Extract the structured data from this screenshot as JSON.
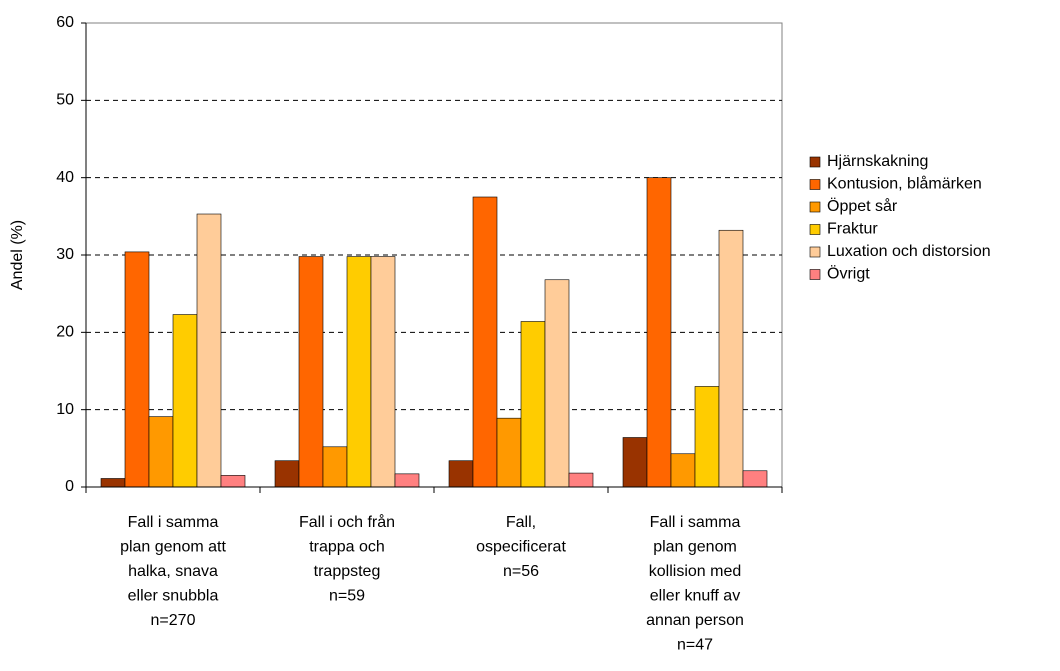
{
  "chart_data": {
    "type": "bar",
    "y_label": "Andel (%)",
    "categories": [
      [
        "Fall i samma",
        "plan genom att",
        "halka, snava",
        "eller snubbla",
        "n=270"
      ],
      [
        "Fall i och från",
        "trappa och",
        "trappsteg",
        "n=59"
      ],
      [
        "Fall,",
        "ospecificerat",
        "n=56"
      ],
      [
        "Fall i samma",
        "plan genom",
        "kollision med",
        "eller knuff av",
        "annan person",
        "n=47"
      ]
    ],
    "series": [
      {
        "name": "Hjärnskakning",
        "color": "#993300",
        "values": [
          1.1,
          3.4,
          3.4,
          6.4
        ]
      },
      {
        "name": "Kontusion, blåmärken",
        "color": "#ff6600",
        "values": [
          30.4,
          29.8,
          37.5,
          40.0
        ]
      },
      {
        "name": "Öppet sår",
        "color": "#ff9900",
        "values": [
          9.1,
          5.2,
          8.9,
          4.3
        ]
      },
      {
        "name": "Fraktur",
        "color": "#ffcc00",
        "values": [
          22.3,
          29.8,
          21.4,
          13.0
        ]
      },
      {
        "name": "Luxation och distorsion",
        "color": "#ffcc99",
        "values": [
          35.3,
          29.8,
          26.8,
          33.2
        ]
      },
      {
        "name": "Övrigt",
        "color": "#ff8080",
        "values": [
          1.5,
          1.7,
          1.8,
          2.1
        ]
      }
    ],
    "ylim": [
      0,
      60
    ],
    "yticks": [
      0,
      10,
      20,
      30,
      40,
      50,
      60
    ],
    "grid": true,
    "legend": "right"
  }
}
